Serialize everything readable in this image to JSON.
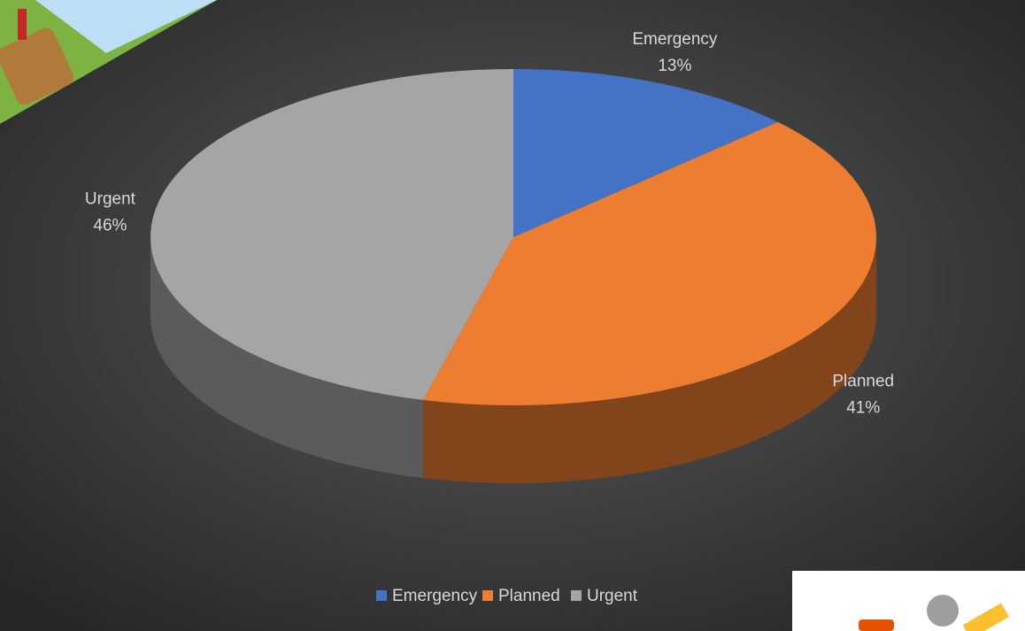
{
  "chart_data": {
    "type": "pie",
    "categories": [
      "Emergency",
      "Planned",
      "Urgent"
    ],
    "values": [
      13,
      41,
      46
    ],
    "value_labels": [
      "13%",
      "41%",
      "46%"
    ],
    "colors": [
      "#4472c4",
      "#ed7d31",
      "#a5a5a5"
    ],
    "legend": "bottom"
  }
}
